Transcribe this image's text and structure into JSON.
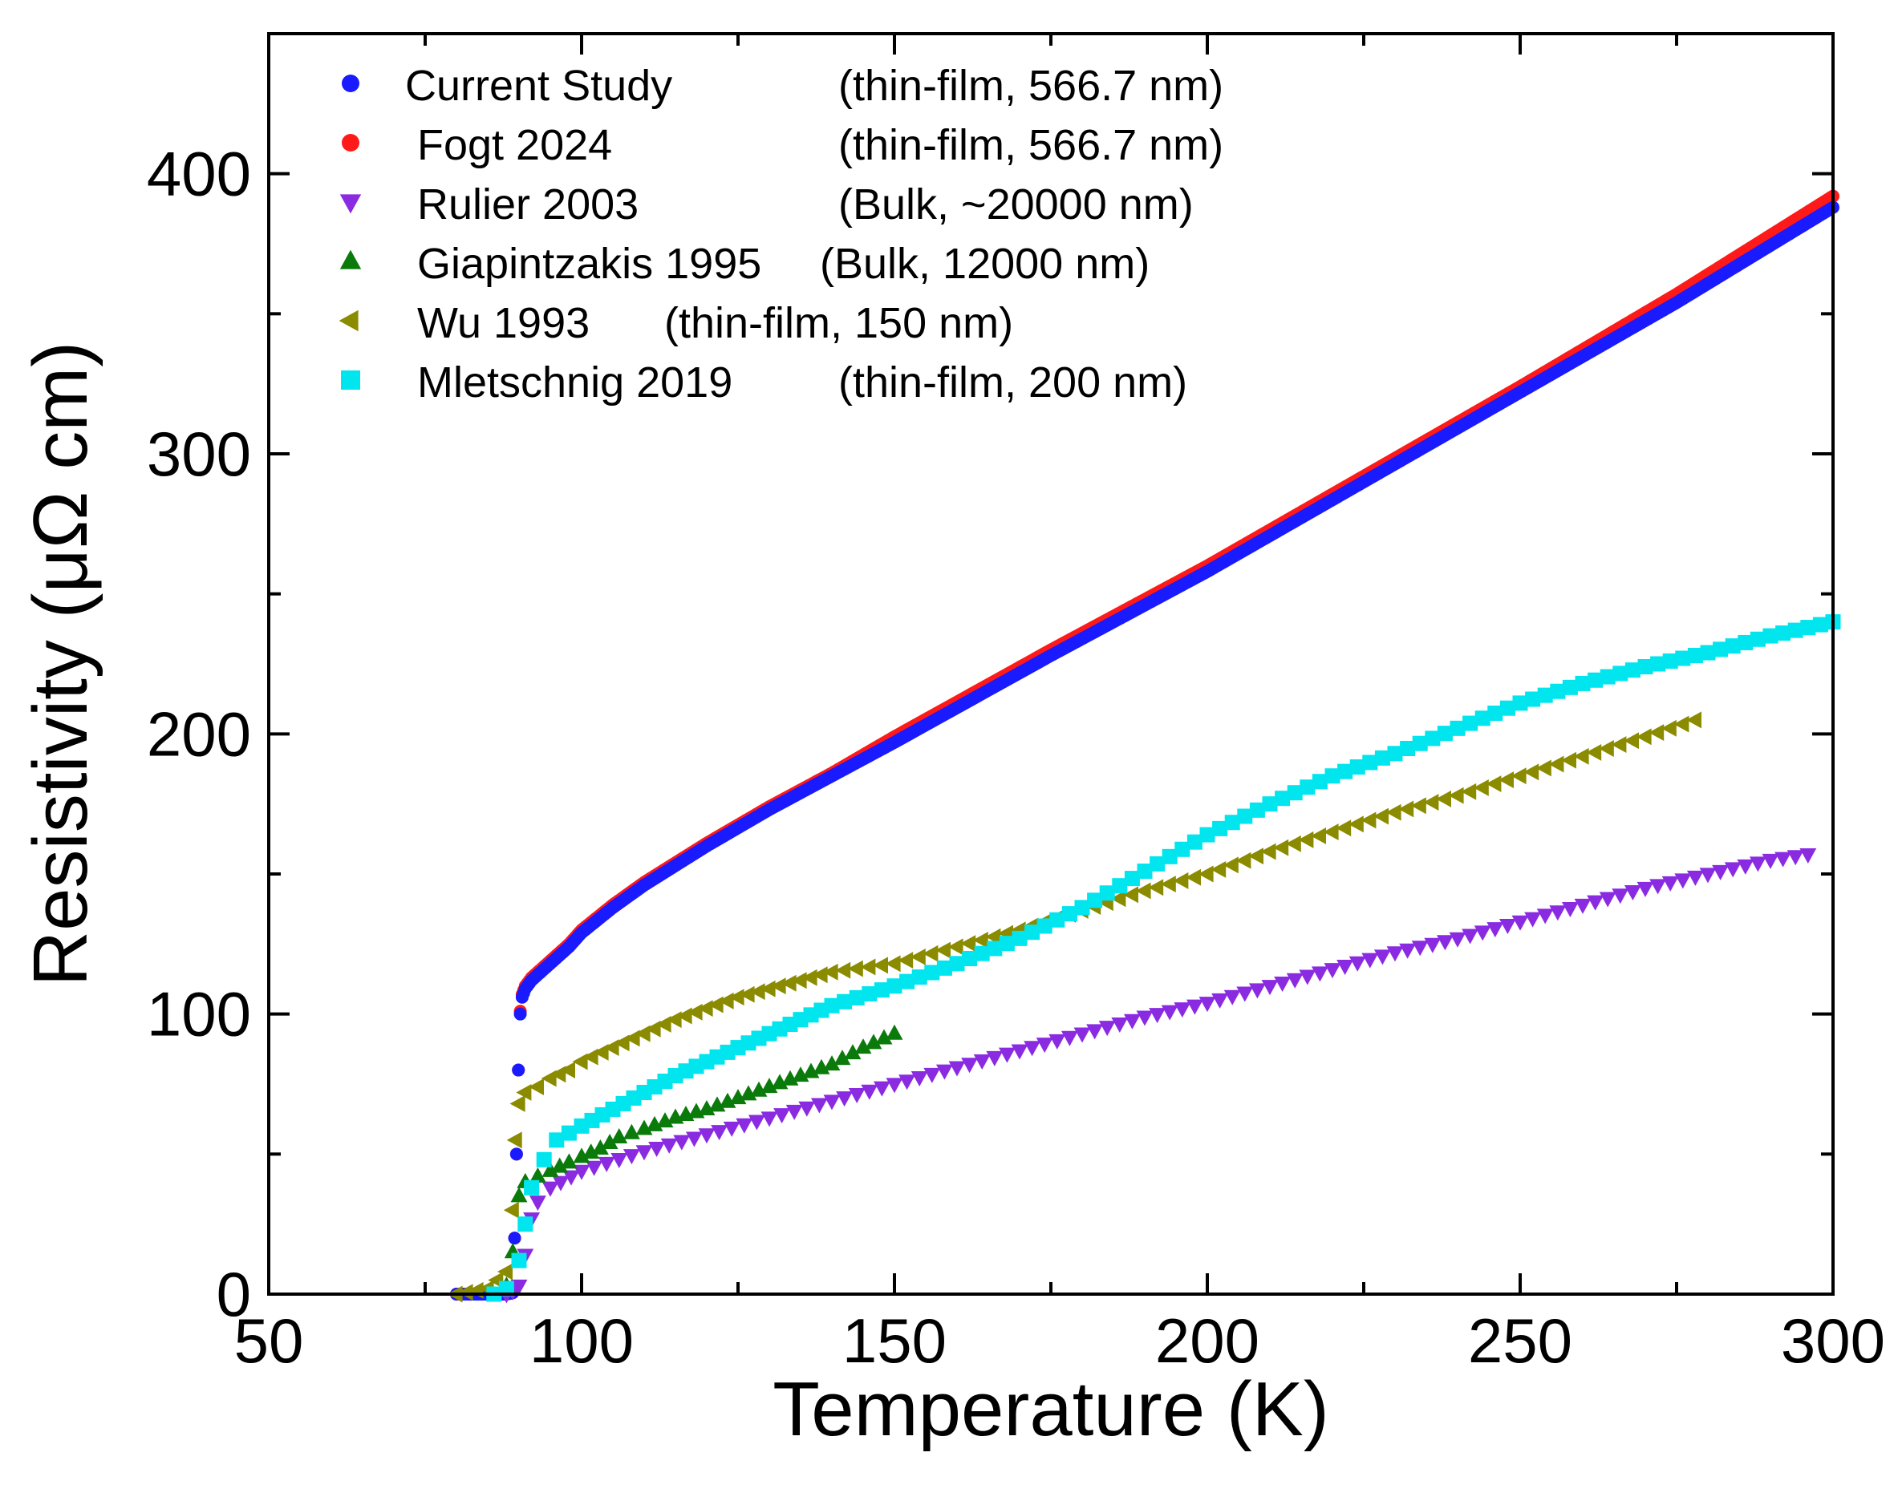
{
  "chart_data": {
    "type": "scatter",
    "xlabel": "Temperature (K)",
    "ylabel": "Resistivity (μΩ cm)",
    "xlim": [
      50,
      300
    ],
    "ylim": [
      0,
      450
    ],
    "xticks": [
      50,
      100,
      150,
      200,
      250,
      300
    ],
    "xtick_labels": [
      "50",
      "100",
      "150",
      "200",
      "250",
      "300"
    ],
    "yticks": [
      0,
      100,
      200,
      300,
      400
    ],
    "ytick_labels": [
      "0",
      "100",
      "200",
      "300",
      "400"
    ],
    "legend_position": "top-left",
    "series": [
      {
        "name": "Current Study",
        "description": "(thin-film, 566.7 nm)",
        "marker": "circle",
        "color": "#1a1aff",
        "points": [
          [
            80,
            0
          ],
          [
            88,
            0
          ],
          [
            89,
            0.5
          ],
          [
            89.3,
            20
          ],
          [
            89.6,
            50
          ],
          [
            89.9,
            80
          ],
          [
            90.2,
            100
          ],
          [
            90.5,
            106
          ],
          [
            91,
            109
          ],
          [
            92,
            112
          ],
          [
            94,
            116
          ],
          [
            96,
            120
          ],
          [
            98,
            124
          ],
          [
            100,
            129
          ],
          [
            105,
            138
          ],
          [
            110,
            146
          ],
          [
            120,
            160
          ],
          [
            130,
            173
          ],
          [
            140,
            185
          ],
          [
            150,
            197
          ],
          [
            175,
            228
          ],
          [
            200,
            258
          ],
          [
            225,
            290
          ],
          [
            250,
            322
          ],
          [
            275,
            354
          ],
          [
            300,
            388
          ]
        ]
      },
      {
        "name": "Fogt 2024",
        "description": "(thin-film, 566.7 nm)",
        "marker": "circle",
        "color": "#ff1a1a",
        "points": [
          [
            80,
            0
          ],
          [
            88,
            0
          ],
          [
            89,
            0.5
          ],
          [
            89.3,
            20
          ],
          [
            89.6,
            50
          ],
          [
            89.9,
            80
          ],
          [
            90.2,
            101
          ],
          [
            90.5,
            107
          ],
          [
            91,
            110
          ],
          [
            92,
            113
          ],
          [
            94,
            117
          ],
          [
            96,
            121
          ],
          [
            98,
            125
          ],
          [
            100,
            130
          ],
          [
            105,
            139
          ],
          [
            110,
            147
          ],
          [
            120,
            161
          ],
          [
            130,
            174
          ],
          [
            140,
            186
          ],
          [
            150,
            199
          ],
          [
            175,
            230
          ],
          [
            200,
            260
          ],
          [
            225,
            292
          ],
          [
            250,
            324
          ],
          [
            275,
            357
          ],
          [
            300,
            392
          ]
        ]
      },
      {
        "name": "Rulier 2003",
        "description": "(Bulk, ~20000 nm)",
        "marker": "triangle-down",
        "color": "#8a2be2",
        "points": [
          [
            88,
            0
          ],
          [
            89,
            1
          ],
          [
            90,
            3
          ],
          [
            91,
            14
          ],
          [
            92,
            27
          ],
          [
            93,
            33
          ],
          [
            95,
            38
          ],
          [
            100,
            44
          ],
          [
            110,
            51
          ],
          [
            120,
            57
          ],
          [
            130,
            63
          ],
          [
            140,
            69
          ],
          [
            150,
            75
          ],
          [
            160,
            81
          ],
          [
            170,
            87
          ],
          [
            180,
            93
          ],
          [
            190,
            99
          ],
          [
            200,
            104
          ],
          [
            210,
            110
          ],
          [
            220,
            116
          ],
          [
            230,
            122
          ],
          [
            240,
            127
          ],
          [
            250,
            133
          ],
          [
            260,
            139
          ],
          [
            270,
            145
          ],
          [
            280,
            150
          ],
          [
            290,
            155
          ],
          [
            296,
            157
          ]
        ]
      },
      {
        "name": "Giapintzakis 1995",
        "description": "(Bulk, 12000 nm)",
        "marker": "triangle-up",
        "color": "#0a7a0a",
        "points": [
          [
            88,
            3
          ],
          [
            89,
            15
          ],
          [
            90,
            35
          ],
          [
            91,
            40
          ],
          [
            93,
            42
          ],
          [
            95,
            44
          ],
          [
            98,
            47
          ],
          [
            100,
            49
          ],
          [
            103,
            52
          ],
          [
            106,
            56
          ],
          [
            110,
            59
          ],
          [
            115,
            63
          ],
          [
            120,
            66
          ],
          [
            125,
            70
          ],
          [
            130,
            74
          ],
          [
            135,
            78
          ],
          [
            140,
            82
          ],
          [
            145,
            88
          ],
          [
            150,
            93
          ]
        ]
      },
      {
        "name": "Wu 1993",
        "description": "(thin-film, 150 nm)",
        "marker": "triangle-left",
        "color": "#8b8b00",
        "points": [
          [
            80,
            0
          ],
          [
            85,
            2
          ],
          [
            88,
            8
          ],
          [
            89,
            30
          ],
          [
            89.5,
            55
          ],
          [
            90,
            68
          ],
          [
            91,
            72
          ],
          [
            93,
            74
          ],
          [
            95,
            77
          ],
          [
            98,
            80
          ],
          [
            100,
            83
          ],
          [
            105,
            88
          ],
          [
            110,
            93
          ],
          [
            115,
            98
          ],
          [
            120,
            102
          ],
          [
            125,
            106
          ],
          [
            130,
            109
          ],
          [
            135,
            112
          ],
          [
            140,
            115
          ],
          [
            150,
            118
          ],
          [
            160,
            124
          ],
          [
            170,
            130
          ],
          [
            180,
            137
          ],
          [
            190,
            144
          ],
          [
            200,
            150
          ],
          [
            210,
            158
          ],
          [
            220,
            165
          ],
          [
            230,
            172
          ],
          [
            240,
            178
          ],
          [
            250,
            185
          ],
          [
            260,
            192
          ],
          [
            270,
            199
          ],
          [
            278,
            205
          ]
        ]
      },
      {
        "name": "Mletschnig 2019",
        "description": "(thin-film, 200 nm)",
        "marker": "square",
        "color": "#00e5ee",
        "points": [
          [
            86,
            0
          ],
          [
            88,
            2
          ],
          [
            90,
            12
          ],
          [
            91,
            25
          ],
          [
            92,
            38
          ],
          [
            94,
            48
          ],
          [
            96,
            55
          ],
          [
            100,
            60
          ],
          [
            105,
            66
          ],
          [
            110,
            72
          ],
          [
            115,
            78
          ],
          [
            120,
            83
          ],
          [
            125,
            88
          ],
          [
            130,
            93
          ],
          [
            135,
            98
          ],
          [
            140,
            103
          ],
          [
            150,
            110
          ],
          [
            160,
            118
          ],
          [
            170,
            127
          ],
          [
            180,
            138
          ],
          [
            190,
            151
          ],
          [
            200,
            164
          ],
          [
            210,
            175
          ],
          [
            220,
            185
          ],
          [
            230,
            193
          ],
          [
            240,
            202
          ],
          [
            250,
            211
          ],
          [
            260,
            218
          ],
          [
            270,
            224
          ],
          [
            280,
            229
          ],
          [
            290,
            235
          ],
          [
            300,
            240
          ]
        ]
      }
    ]
  }
}
